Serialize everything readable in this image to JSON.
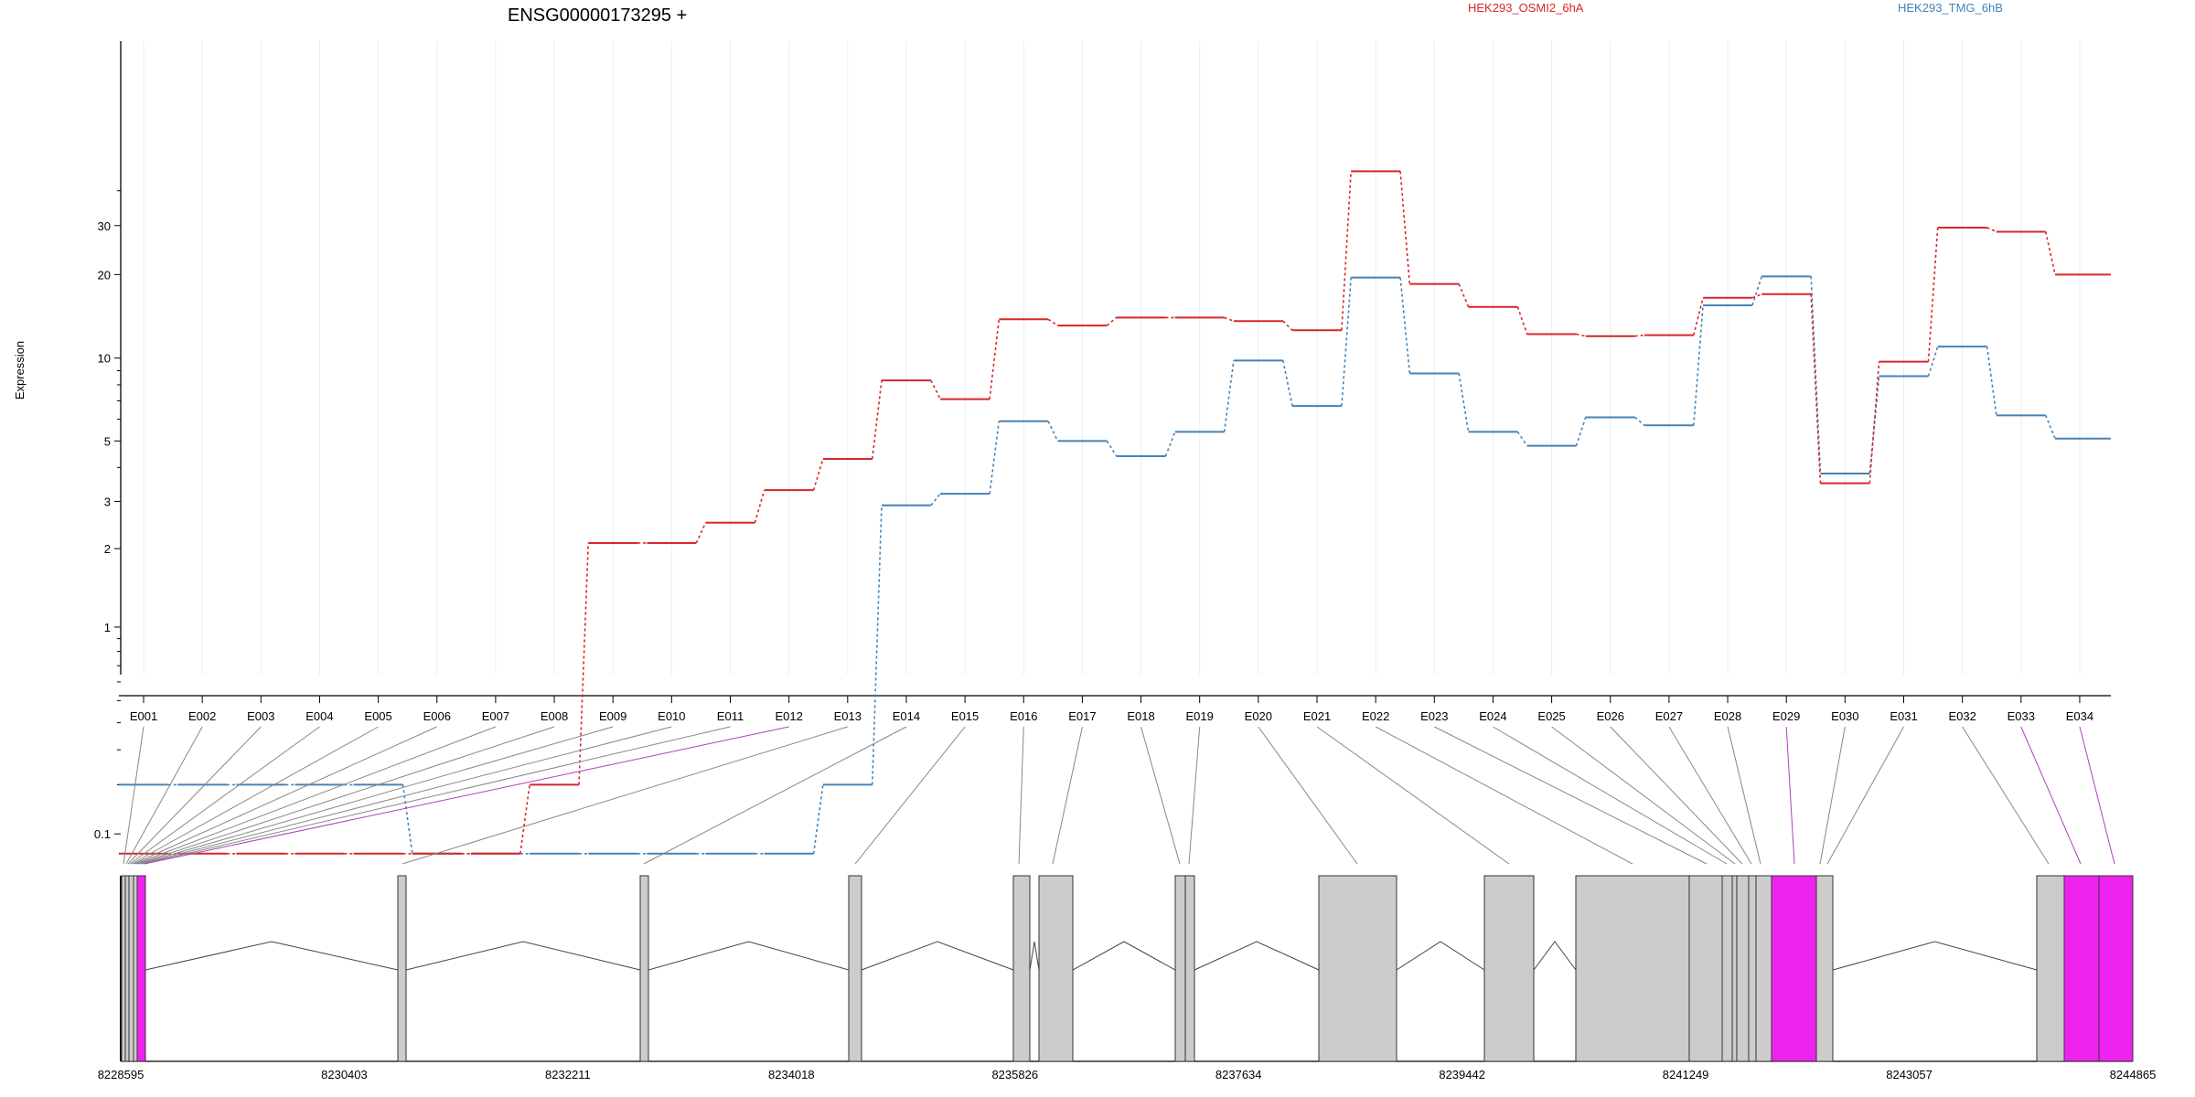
{
  "chart_data": {
    "type": "line",
    "title": "ENSG00000173295 +",
    "ylabel": "Expression",
    "y_scale": "log",
    "y_ticks": [
      "0.1",
      "1",
      "2",
      "3",
      "5",
      "10",
      "20",
      "30"
    ],
    "categories": [
      "E001",
      "E002",
      "E003",
      "E004",
      "E005",
      "E006",
      "E007",
      "E008",
      "E009",
      "E010",
      "E011",
      "E012",
      "E013",
      "E014",
      "E015",
      "E016",
      "E017",
      "E018",
      "E019",
      "E020",
      "E021",
      "E022",
      "E023",
      "E024",
      "E025",
      "E026",
      "E027",
      "E028",
      "E029",
      "E030",
      "E031",
      "E032",
      "E033",
      "E034"
    ],
    "series": [
      {
        "name": "HEK293_OSMI2_6hA",
        "color": "#d62728",
        "values": [
          0.07,
          0.07,
          0.07,
          0.07,
          0.07,
          0.07,
          0.07,
          0.2,
          2.1,
          2.1,
          2.5,
          3.3,
          4.3,
          8.3,
          7.1,
          13.8,
          13.1,
          14.0,
          14.0,
          13.6,
          12.6,
          47.0,
          18.5,
          15.3,
          12.2,
          12.0,
          12.1,
          16.5,
          17.0,
          3.5,
          9.7,
          29.5,
          28.5,
          20.0
        ]
      },
      {
        "name": "HEK293_TMG_6hB",
        "color": "#4682b4",
        "values": [
          0.2,
          0.2,
          0.2,
          0.2,
          0.2,
          0.07,
          0.07,
          0.07,
          0.07,
          0.07,
          0.07,
          0.07,
          0.2,
          2.9,
          3.2,
          5.9,
          5.0,
          4.4,
          5.4,
          9.8,
          6.7,
          19.5,
          8.8,
          5.4,
          4.8,
          6.1,
          5.7,
          15.5,
          19.7,
          3.8,
          8.6,
          11.0,
          6.2,
          5.1
        ]
      }
    ],
    "gene_coord_ticks": [
      "8228595",
      "8230403",
      "8232211",
      "8234018",
      "8235826",
      "8237634",
      "8239442",
      "8241249",
      "8243057",
      "8244865"
    ],
    "exon_highlight_color": "#ee22ee",
    "exon_color": "#cccccc"
  }
}
